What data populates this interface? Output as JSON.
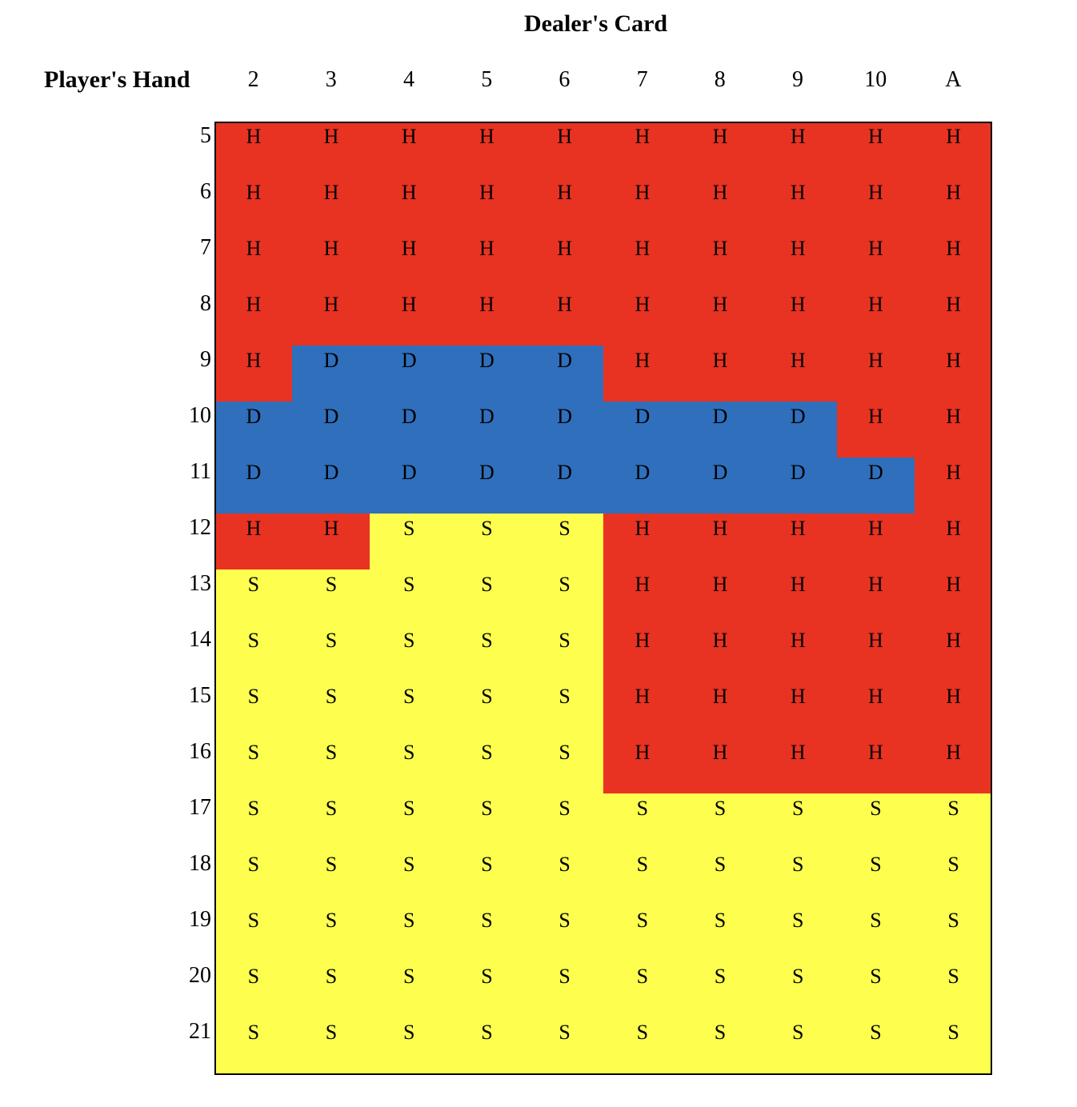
{
  "chart_data": {
    "type": "table",
    "title": "Dealer's Card",
    "ylabel": "Player's Hand",
    "columns": [
      "2",
      "3",
      "4",
      "5",
      "6",
      "7",
      "8",
      "9",
      "10",
      "A"
    ],
    "rows": [
      "5",
      "6",
      "7",
      "8",
      "9",
      "10",
      "11",
      "12",
      "13",
      "14",
      "15",
      "16",
      "17",
      "18",
      "19",
      "20",
      "21"
    ],
    "cells": [
      [
        "H",
        "H",
        "H",
        "H",
        "H",
        "H",
        "H",
        "H",
        "H",
        "H"
      ],
      [
        "H",
        "H",
        "H",
        "H",
        "H",
        "H",
        "H",
        "H",
        "H",
        "H"
      ],
      [
        "H",
        "H",
        "H",
        "H",
        "H",
        "H",
        "H",
        "H",
        "H",
        "H"
      ],
      [
        "H",
        "H",
        "H",
        "H",
        "H",
        "H",
        "H",
        "H",
        "H",
        "H"
      ],
      [
        "H",
        "D",
        "D",
        "D",
        "D",
        "H",
        "H",
        "H",
        "H",
        "H"
      ],
      [
        "D",
        "D",
        "D",
        "D",
        "D",
        "D",
        "D",
        "D",
        "H",
        "H"
      ],
      [
        "D",
        "D",
        "D",
        "D",
        "D",
        "D",
        "D",
        "D",
        "D",
        "H"
      ],
      [
        "H",
        "H",
        "S",
        "S",
        "S",
        "H",
        "H",
        "H",
        "H",
        "H"
      ],
      [
        "S",
        "S",
        "S",
        "S",
        "S",
        "H",
        "H",
        "H",
        "H",
        "H"
      ],
      [
        "S",
        "S",
        "S",
        "S",
        "S",
        "H",
        "H",
        "H",
        "H",
        "H"
      ],
      [
        "S",
        "S",
        "S",
        "S",
        "S",
        "H",
        "H",
        "H",
        "H",
        "H"
      ],
      [
        "S",
        "S",
        "S",
        "S",
        "S",
        "H",
        "H",
        "H",
        "H",
        "H"
      ],
      [
        "S",
        "S",
        "S",
        "S",
        "S",
        "S",
        "S",
        "S",
        "S",
        "S"
      ],
      [
        "S",
        "S",
        "S",
        "S",
        "S",
        "S",
        "S",
        "S",
        "S",
        "S"
      ],
      [
        "S",
        "S",
        "S",
        "S",
        "S",
        "S",
        "S",
        "S",
        "S",
        "S"
      ],
      [
        "S",
        "S",
        "S",
        "S",
        "S",
        "S",
        "S",
        "S",
        "S",
        "S"
      ],
      [
        "S",
        "S",
        "S",
        "S",
        "S",
        "S",
        "S",
        "S",
        "S",
        "S"
      ]
    ],
    "colors": {
      "H": "#e83323",
      "D": "#2f6fbc",
      "S": "#fefe4f"
    }
  }
}
